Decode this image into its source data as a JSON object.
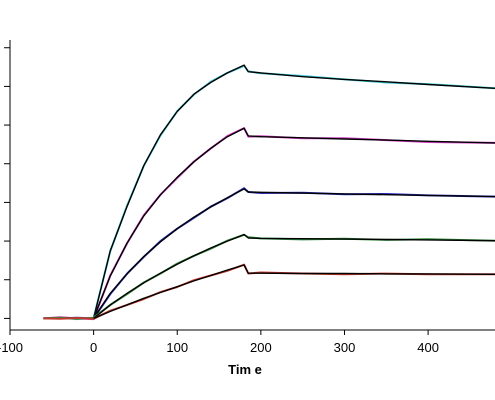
{
  "chart_data": {
    "type": "line",
    "title": "",
    "xlabel": "Tim e",
    "ylabel": "",
    "xlim": [
      -100,
      480
    ],
    "ylim": [
      -0.3,
      7.2
    ],
    "x_ticks": [
      -100,
      0,
      100,
      200,
      300,
      400
    ],
    "x_tick_labels": [
      "-100",
      "0",
      "100",
      "200",
      "300",
      "400"
    ],
    "y_ticks": [
      0,
      1,
      2,
      3,
      4,
      5,
      6,
      7
    ],
    "grid": false,
    "legend": "none",
    "fit_color": "#000000",
    "series": [
      {
        "color": "#3ec8d8",
        "x": [
          -60,
          -40,
          -20,
          0,
          20,
          40,
          60,
          80,
          100,
          120,
          140,
          160,
          180,
          185,
          200,
          250,
          300,
          350,
          400,
          480
        ],
        "values": [
          0,
          0.02,
          0,
          0,
          1.75,
          2.9,
          3.95,
          4.75,
          5.35,
          5.8,
          6.1,
          6.35,
          6.55,
          6.38,
          6.35,
          6.25,
          6.18,
          6.12,
          6.05,
          5.95
        ]
      },
      {
        "color": "#d23bc4",
        "x": [
          -60,
          -40,
          -20,
          0,
          20,
          40,
          60,
          80,
          100,
          120,
          140,
          160,
          180,
          185,
          200,
          250,
          300,
          350,
          400,
          480
        ],
        "values": [
          0,
          0.01,
          0,
          0,
          1.1,
          1.95,
          2.65,
          3.2,
          3.65,
          4.05,
          4.4,
          4.7,
          4.92,
          4.72,
          4.7,
          4.67,
          4.64,
          4.61,
          4.58,
          4.54
        ]
      },
      {
        "color": "#2a2fc0",
        "x": [
          -60,
          -40,
          -20,
          0,
          20,
          40,
          60,
          80,
          100,
          120,
          140,
          160,
          180,
          185,
          200,
          250,
          300,
          350,
          400,
          480
        ],
        "values": [
          0,
          0.01,
          0,
          0,
          0.65,
          1.15,
          1.6,
          1.98,
          2.32,
          2.62,
          2.88,
          3.12,
          3.35,
          3.27,
          3.26,
          3.24,
          3.22,
          3.2,
          3.18,
          3.15
        ]
      },
      {
        "color": "#2f8a3a",
        "x": [
          -60,
          -40,
          -20,
          0,
          20,
          40,
          60,
          80,
          100,
          120,
          140,
          160,
          180,
          185,
          200,
          250,
          300,
          350,
          400,
          480
        ],
        "values": [
          0,
          0.01,
          0,
          0,
          0.35,
          0.65,
          0.92,
          1.17,
          1.4,
          1.62,
          1.82,
          2.0,
          2.17,
          2.08,
          2.07,
          2.06,
          2.05,
          2.04,
          2.03,
          2.01
        ]
      },
      {
        "color": "#c23a2a",
        "x": [
          -60,
          -40,
          -20,
          0,
          20,
          40,
          60,
          80,
          100,
          120,
          140,
          160,
          180,
          185,
          200,
          250,
          300,
          350,
          400,
          480
        ],
        "values": [
          0,
          0.01,
          0,
          0,
          0.18,
          0.35,
          0.52,
          0.67,
          0.82,
          0.97,
          1.11,
          1.25,
          1.38,
          1.17,
          1.17,
          1.16,
          1.16,
          1.15,
          1.15,
          1.14
        ]
      }
    ]
  }
}
